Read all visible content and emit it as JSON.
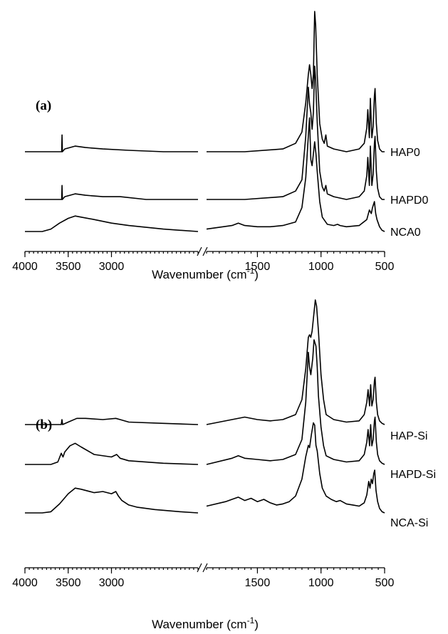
{
  "chart_data": [
    {
      "panel": "(a)",
      "type": "line",
      "xlabel": "Wavenumber (cm",
      "xlabel_sup": "-1",
      "xlabel_end": ")",
      "x_reversed": true,
      "x_break": [
        2000,
        1900
      ],
      "xlim_segments": [
        [
          4000,
          2000
        ],
        [
          1900,
          500
        ]
      ],
      "xticks": [
        4000,
        3500,
        3000,
        1500,
        1000,
        500
      ],
      "xtick_labels": [
        "4000",
        "3500",
        "3000",
        "1500",
        "1000",
        "500"
      ],
      "series": [
        {
          "name": "HAP0",
          "x": [
            4000,
            3600,
            3575,
            3571,
            3567,
            3540,
            3420,
            3300,
            3100,
            2800,
            2400,
            2000,
            1900,
            1600,
            1300,
            1200,
            1150,
            1120,
            1100,
            1090,
            1080,
            1070,
            1060,
            1050,
            1042,
            1030,
            1010,
            990,
            975,
            962,
            950,
            900,
            800,
            700,
            660,
            640,
            632,
            620,
            612,
            600,
            590,
            580,
            575,
            565,
            555,
            540,
            520,
            500
          ],
          "y": [
            0,
            0.0,
            0.0,
            0.12,
            0.0,
            0.02,
            0.04,
            0.03,
            0.02,
            0.01,
            0.0,
            0.0,
            0.0,
            0.0,
            0.02,
            0.06,
            0.14,
            0.35,
            0.55,
            0.62,
            0.55,
            0.45,
            0.55,
            1.0,
            0.9,
            0.55,
            0.2,
            0.09,
            0.06,
            0.12,
            0.04,
            0.02,
            0.0,
            0.02,
            0.06,
            0.17,
            0.3,
            0.1,
            0.38,
            0.1,
            0.18,
            0.4,
            0.45,
            0.2,
            0.08,
            0.02,
            0.0,
            0.0
          ]
        },
        {
          "name": "HAPD0",
          "x": [
            4000,
            3600,
            3575,
            3571,
            3567,
            3540,
            3420,
            3300,
            3100,
            2900,
            2600,
            2000,
            1900,
            1600,
            1300,
            1200,
            1150,
            1120,
            1100,
            1090,
            1080,
            1070,
            1060,
            1050,
            1042,
            1030,
            1010,
            990,
            975,
            962,
            950,
            900,
            800,
            700,
            660,
            640,
            632,
            620,
            612,
            600,
            590,
            580,
            575,
            565,
            555,
            540,
            520,
            500
          ],
          "y": [
            0,
            0.0,
            0.0,
            0.1,
            0.0,
            0.02,
            0.04,
            0.03,
            0.02,
            0.02,
            0.0,
            0.0,
            0.0,
            0.0,
            0.02,
            0.06,
            0.14,
            0.45,
            0.8,
            0.68,
            0.62,
            0.5,
            0.62,
            0.95,
            0.85,
            0.55,
            0.2,
            0.09,
            0.06,
            0.1,
            0.04,
            0.02,
            0.0,
            0.02,
            0.06,
            0.17,
            0.3,
            0.1,
            0.38,
            0.1,
            0.18,
            0.4,
            0.45,
            0.2,
            0.08,
            0.02,
            0.0,
            0.0
          ]
        },
        {
          "name": "NCA0",
          "x": [
            4000,
            3800,
            3700,
            3600,
            3500,
            3420,
            3350,
            3200,
            3000,
            2800,
            2400,
            2000,
            1900,
            1700,
            1650,
            1600,
            1500,
            1400,
            1300,
            1200,
            1150,
            1120,
            1100,
            1090,
            1080,
            1070,
            1050,
            1040,
            1030,
            1010,
            990,
            950,
            900,
            870,
            850,
            800,
            700,
            640,
            620,
            605,
            595,
            580,
            570,
            560,
            540,
            520,
            500
          ],
          "y": [
            0,
            0.0,
            0.02,
            0.07,
            0.11,
            0.13,
            0.12,
            0.1,
            0.07,
            0.05,
            0.02,
            0.0,
            0.02,
            0.05,
            0.07,
            0.05,
            0.04,
            0.04,
            0.05,
            0.08,
            0.2,
            0.45,
            0.8,
            0.95,
            0.6,
            0.55,
            0.75,
            0.65,
            0.5,
            0.25,
            0.12,
            0.06,
            0.05,
            0.06,
            0.05,
            0.04,
            0.05,
            0.1,
            0.18,
            0.15,
            0.2,
            0.25,
            0.15,
            0.1,
            0.04,
            0.01,
            0.0
          ]
        }
      ]
    },
    {
      "panel": "(b)",
      "type": "line",
      "xlabel": "Wavenumber (cm",
      "xlabel_sup": "-1",
      "xlabel_end": ")",
      "x_reversed": true,
      "x_break": [
        2000,
        1900
      ],
      "xlim_segments": [
        [
          4000,
          2000
        ],
        [
          1900,
          500
        ]
      ],
      "xticks": [
        4000,
        3500,
        3000,
        1500,
        1000,
        500
      ],
      "xtick_labels": [
        "4000",
        "3500",
        "3000",
        "1500",
        "1000",
        "500"
      ],
      "series": [
        {
          "name": "HAP-Si",
          "x": [
            4000,
            3700,
            3580,
            3572,
            3565,
            3500,
            3400,
            3300,
            3100,
            2950,
            2900,
            2800,
            2400,
            2000,
            1900,
            1700,
            1600,
            1500,
            1400,
            1300,
            1200,
            1150,
            1120,
            1100,
            1090,
            1080,
            1070,
            1060,
            1045,
            1035,
            1020,
            1000,
            980,
            960,
            900,
            800,
            700,
            660,
            640,
            630,
            618,
            610,
            600,
            590,
            580,
            575,
            565,
            555,
            540,
            520,
            500
          ],
          "y": [
            0,
            0.0,
            0.0,
            0.04,
            0.0,
            0.02,
            0.05,
            0.05,
            0.04,
            0.05,
            0.04,
            0.02,
            0.01,
            0.0,
            0.0,
            0.04,
            0.06,
            0.04,
            0.03,
            0.04,
            0.08,
            0.2,
            0.45,
            0.7,
            0.72,
            0.7,
            0.75,
            0.85,
            1.0,
            0.95,
            0.75,
            0.4,
            0.2,
            0.08,
            0.04,
            0.02,
            0.03,
            0.08,
            0.18,
            0.28,
            0.15,
            0.32,
            0.15,
            0.2,
            0.35,
            0.38,
            0.18,
            0.08,
            0.03,
            0.01,
            0.0
          ]
        },
        {
          "name": "HAPD-Si",
          "x": [
            4000,
            3700,
            3620,
            3580,
            3560,
            3540,
            3480,
            3420,
            3350,
            3200,
            3000,
            2940,
            2900,
            2800,
            2400,
            2000,
            1900,
            1700,
            1650,
            1600,
            1500,
            1400,
            1300,
            1200,
            1150,
            1120,
            1100,
            1090,
            1080,
            1065,
            1055,
            1040,
            1030,
            1020,
            1000,
            980,
            960,
            900,
            800,
            700,
            660,
            640,
            630,
            618,
            610,
            600,
            590,
            580,
            575,
            565,
            555,
            540,
            520,
            500
          ],
          "y": [
            0,
            0.0,
            0.02,
            0.09,
            0.06,
            0.1,
            0.15,
            0.17,
            0.14,
            0.08,
            0.06,
            0.08,
            0.05,
            0.03,
            0.01,
            0.0,
            0.0,
            0.05,
            0.07,
            0.05,
            0.04,
            0.03,
            0.04,
            0.08,
            0.2,
            0.5,
            0.9,
            0.78,
            0.72,
            0.85,
            1.0,
            0.95,
            0.78,
            0.55,
            0.3,
            0.15,
            0.07,
            0.04,
            0.02,
            0.03,
            0.08,
            0.18,
            0.28,
            0.15,
            0.32,
            0.15,
            0.2,
            0.35,
            0.38,
            0.18,
            0.08,
            0.03,
            0.01,
            0.0
          ]
        },
        {
          "name": "NCA-Si",
          "x": [
            4000,
            3800,
            3700,
            3600,
            3500,
            3420,
            3350,
            3200,
            3100,
            3000,
            2950,
            2920,
            2880,
            2800,
            2700,
            2500,
            2200,
            2000,
            1900,
            1750,
            1700,
            1650,
            1600,
            1550,
            1500,
            1450,
            1400,
            1350,
            1300,
            1250,
            1200,
            1150,
            1120,
            1100,
            1090,
            1075,
            1060,
            1050,
            1040,
            1030,
            1010,
            990,
            960,
            920,
            880,
            850,
            800,
            750,
            700,
            660,
            640,
            625,
            615,
            605,
            595,
            585,
            578,
            568,
            555,
            540,
            520,
            500
          ],
          "y": [
            0,
            0.0,
            0.01,
            0.08,
            0.17,
            0.22,
            0.21,
            0.18,
            0.19,
            0.17,
            0.19,
            0.15,
            0.11,
            0.07,
            0.05,
            0.03,
            0.01,
            0.0,
            0.06,
            0.1,
            0.12,
            0.14,
            0.11,
            0.13,
            0.1,
            0.12,
            0.09,
            0.07,
            0.08,
            0.1,
            0.15,
            0.3,
            0.5,
            0.6,
            0.58,
            0.7,
            0.8,
            0.78,
            0.6,
            0.55,
            0.35,
            0.22,
            0.15,
            0.12,
            0.1,
            0.11,
            0.08,
            0.07,
            0.06,
            0.09,
            0.16,
            0.28,
            0.22,
            0.3,
            0.26,
            0.35,
            0.38,
            0.2,
            0.1,
            0.04,
            0.01,
            0.0
          ]
        }
      ]
    }
  ]
}
